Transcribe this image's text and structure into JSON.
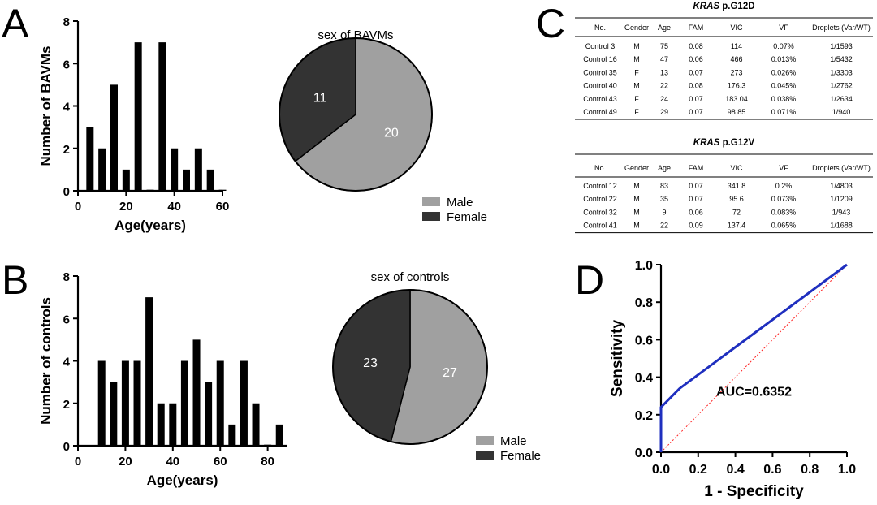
{
  "panels": {
    "A": {
      "letter": "A"
    },
    "B": {
      "letter": "B"
    },
    "C": {
      "letter": "C"
    },
    "D": {
      "letter": "D"
    }
  },
  "colors": {
    "male": "#a0a0a0",
    "female": "#333333",
    "bar": "#000000",
    "roc": "#1f2fbf",
    "ref": "#ff2020"
  },
  "chart_data": [
    {
      "id": "bavms-age-histogram",
      "type": "bar",
      "x": [
        5,
        10,
        15,
        20,
        25,
        30,
        35,
        40,
        45,
        50,
        55,
        60
      ],
      "values": [
        3,
        2,
        5,
        1,
        7,
        0.05,
        7,
        2,
        1,
        2,
        1,
        0.05
      ],
      "xlabel": "Age(years)",
      "ylabel": "Number of BAVMs",
      "xlim": [
        0,
        60
      ],
      "ylim": [
        0,
        8
      ],
      "xticks": [
        0,
        20,
        40,
        60
      ],
      "yticks": [
        0,
        2,
        4,
        6,
        8
      ]
    },
    {
      "id": "bavms-sex-pie",
      "type": "pie",
      "title": "sex of BAVMs",
      "labels": [
        "Male",
        "Female"
      ],
      "values": [
        20,
        11
      ],
      "legend": "bottom-right"
    },
    {
      "id": "controls-age-histogram",
      "type": "bar",
      "x": [
        10,
        15,
        20,
        25,
        30,
        35,
        40,
        45,
        50,
        55,
        60,
        65,
        70,
        75,
        80,
        85
      ],
      "values": [
        4,
        3,
        4,
        4,
        7,
        2,
        2,
        4,
        5,
        3,
        4,
        1,
        4,
        2,
        0.05,
        1
      ],
      "xlabel": "Age(years)",
      "ylabel": "Number of controls",
      "xlim": [
        0,
        88
      ],
      "ylim": [
        0,
        8
      ],
      "xticks": [
        0,
        20,
        40,
        60,
        80
      ],
      "yticks": [
        0,
        2,
        4,
        6,
        8
      ]
    },
    {
      "id": "controls-sex-pie",
      "type": "pie",
      "title": "sex of controls",
      "labels": [
        "Male",
        "Female"
      ],
      "values": [
        27,
        23
      ],
      "legend": "bottom-right"
    },
    {
      "id": "kras-g12d-table",
      "type": "table",
      "title_italic": "KRAS",
      "title_rest": " p.G12D",
      "columns": [
        "No.",
        "Gender",
        "Age",
        "FAM",
        "VIC",
        "VF",
        "Droplets (Var/WT)"
      ],
      "rows": [
        [
          "Control 3",
          "M",
          "75",
          "0.08",
          "114",
          "0.07%",
          "1/1593"
        ],
        [
          "Control 16",
          "M",
          "47",
          "0.06",
          "466",
          "0.013%",
          "1/5432"
        ],
        [
          "Control 35",
          "F",
          "13",
          "0.07",
          "273",
          "0.026%",
          "1/3303"
        ],
        [
          "Control 40",
          "M",
          "22",
          "0.08",
          "176.3",
          "0.045%",
          "1/2762"
        ],
        [
          "Control 43",
          "F",
          "24",
          "0.07",
          "183.04",
          "0.038%",
          "1/2634"
        ],
        [
          "Control 49",
          "F",
          "29",
          "0.07",
          "98.85",
          "0.071%",
          "1/940"
        ]
      ]
    },
    {
      "id": "kras-g12v-table",
      "type": "table",
      "title_italic": "KRAS",
      "title_rest": " p.G12V",
      "columns": [
        "No.",
        "Gender",
        "Age",
        "FAM",
        "VIC",
        "VF",
        "Droplets (Var/WT)"
      ],
      "rows": [
        [
          "Control 12",
          "M",
          "83",
          "0.07",
          "341.8",
          "0.2%",
          "1/4803"
        ],
        [
          "Control 22",
          "M",
          "35",
          "0.07",
          "95.6",
          "0.073%",
          "1/1209"
        ],
        [
          "Control 32",
          "M",
          "9",
          "0.06",
          "72",
          "0.083%",
          "1/943"
        ],
        [
          "Control 41",
          "M",
          "22",
          "0.09",
          "137.4",
          "0.065%",
          "1/1688"
        ]
      ]
    },
    {
      "id": "roc-curve",
      "type": "line",
      "x": [
        0,
        0,
        0.1,
        1
      ],
      "y": [
        0,
        0.24,
        0.34,
        1
      ],
      "reference_line": [
        [
          0,
          0
        ],
        [
          1,
          1
        ]
      ],
      "xlabel": "1 - Specificity",
      "ylabel": "Sensitivity",
      "xlim": [
        0,
        1
      ],
      "ylim": [
        0,
        1
      ],
      "xticks": [
        "0.0",
        "0.2",
        "0.4",
        "0.6",
        "0.8",
        "1.0"
      ],
      "yticks": [
        "0.0",
        "0.2",
        "0.4",
        "0.6",
        "0.8",
        "1.0"
      ],
      "annotation": "AUC=0.6352"
    }
  ]
}
